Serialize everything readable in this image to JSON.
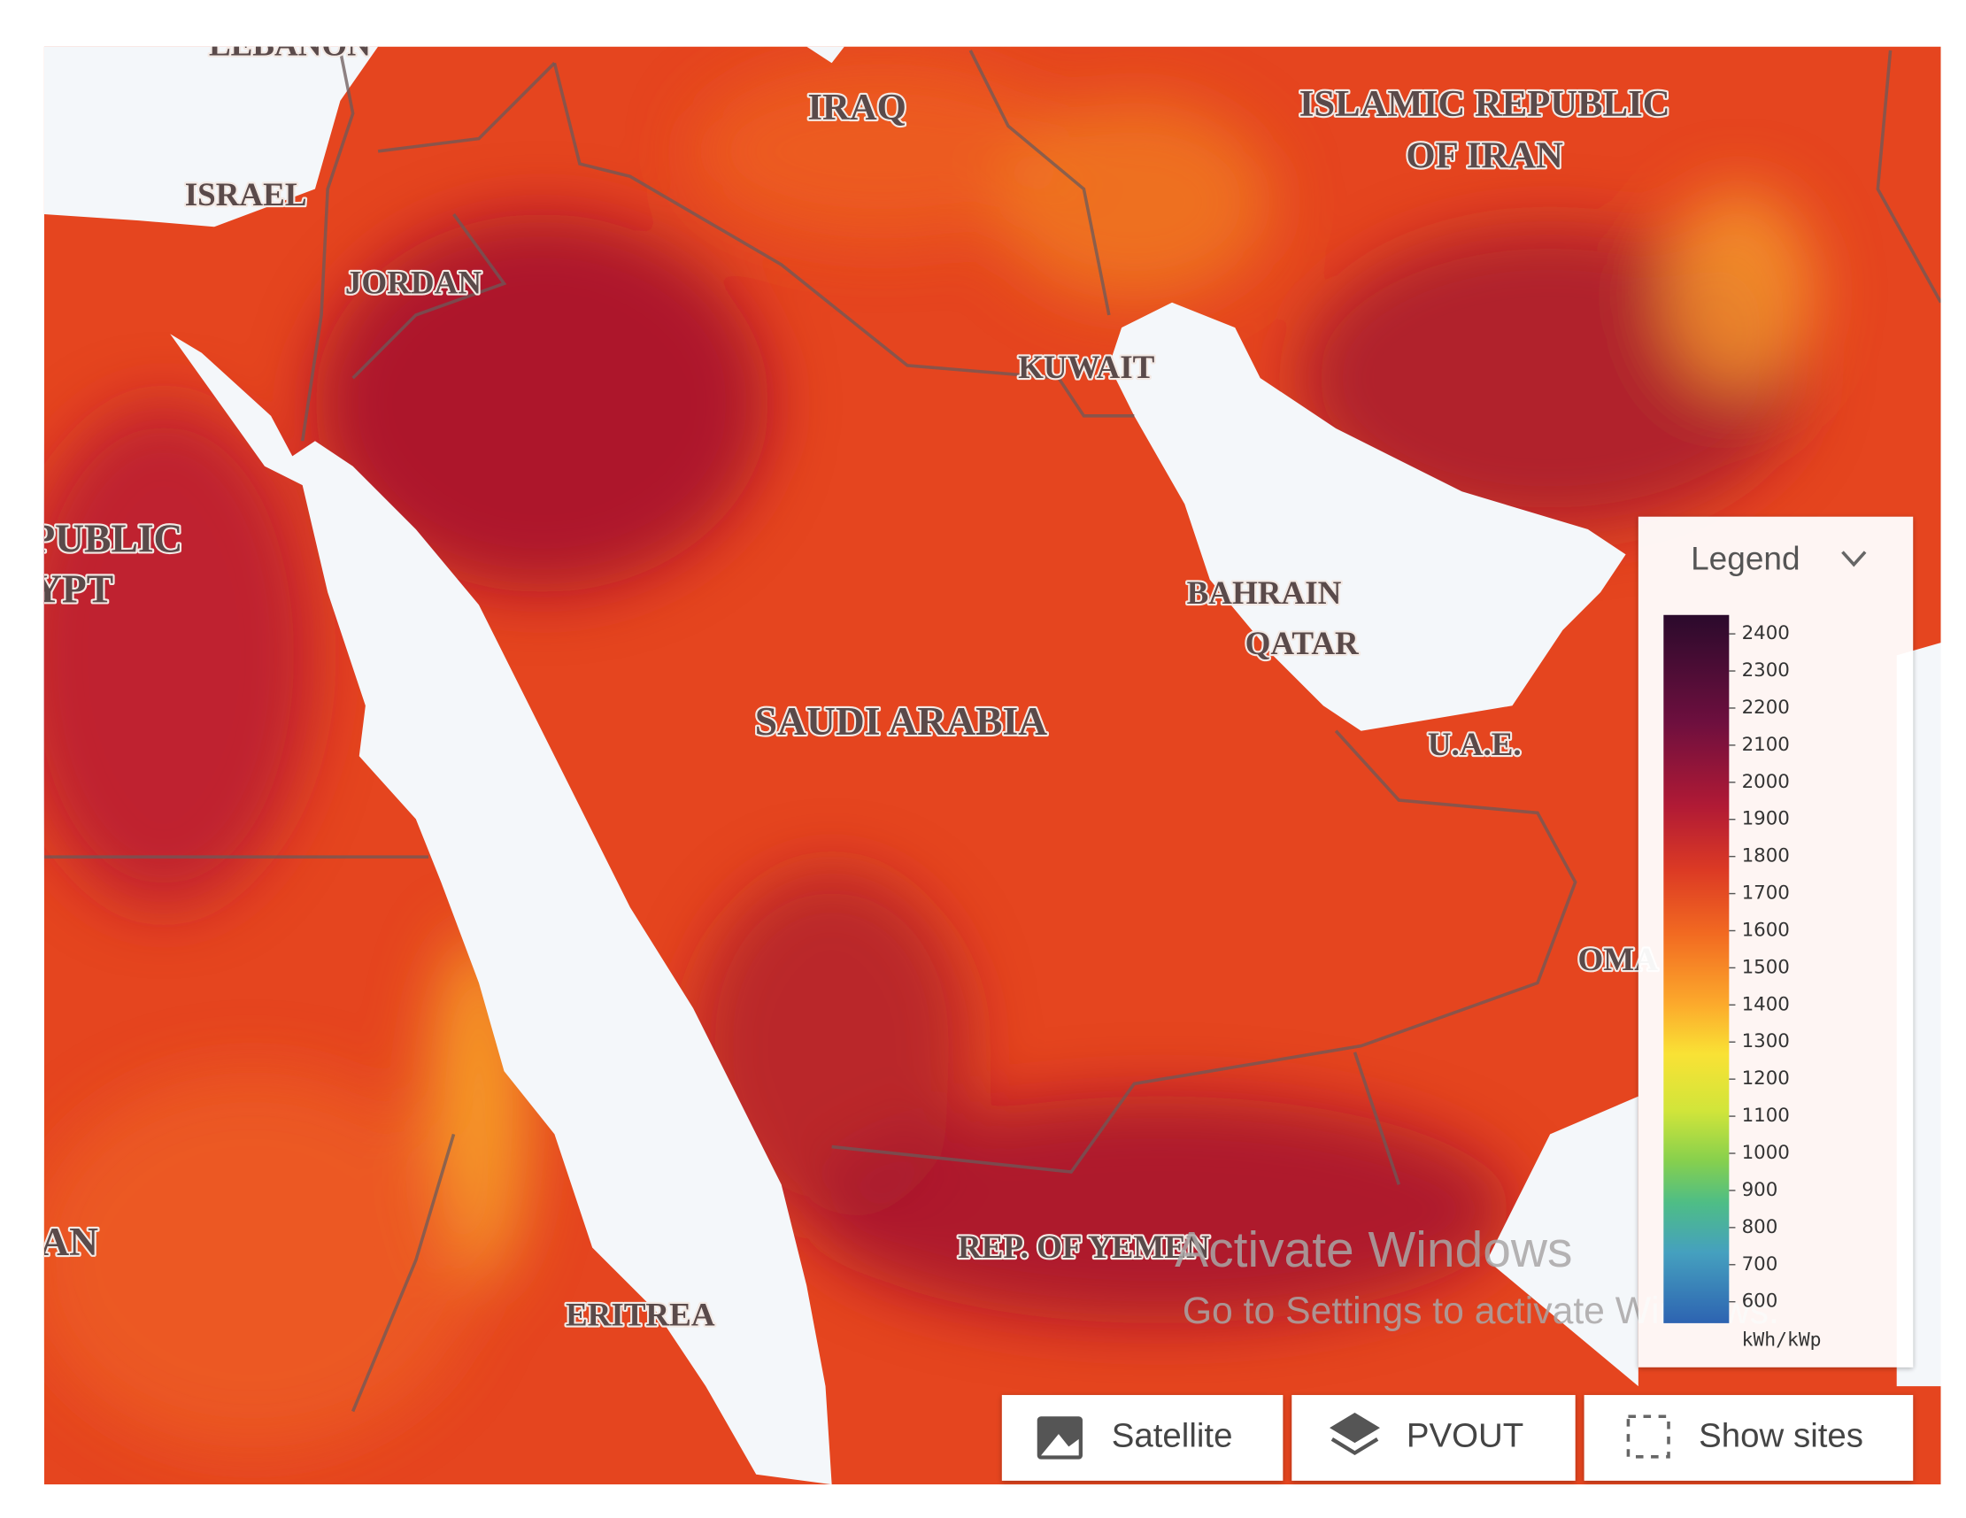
{
  "places": [
    "LEBANON",
    "IRAQ",
    "ISLAMIC REPUBLIC",
    "OF IRAN",
    "ISRAEL",
    "JORDAN",
    "KUWAIT",
    "PUBLIC",
    "YPT",
    "BAHRAIN",
    "QATAR",
    "SAUDI ARABIA",
    "U.A.E.",
    "OMA",
    "AN",
    "REP. OF YEMEN",
    "ERITREA"
  ],
  "legend": {
    "title": "Legend",
    "ticks": [
      2400,
      2300,
      2200,
      2100,
      2000,
      1900,
      1800,
      1700,
      1600,
      1500,
      1400,
      1300,
      1200,
      1100,
      1000,
      900,
      800,
      700,
      600
    ],
    "unit": "kWh/kWp"
  },
  "toolbar": {
    "buttons": [
      "Satellite",
      "PVOUT",
      "Show sites"
    ]
  },
  "watermark": {
    "title": "Activate Windows",
    "subtitle": "Go to Settings to activate Windows."
  }
}
